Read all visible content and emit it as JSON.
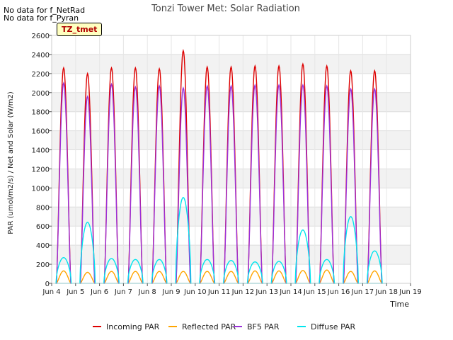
{
  "notes": [
    "No data for f_NetRad",
    "No data for f_Pyran"
  ],
  "badge": "TZ_tmet",
  "chart_data": {
    "type": "line",
    "title": "Tonzi Tower Met: Solar Radiation",
    "xlabel": "Time",
    "ylabel": "PAR (umol/m2/s) / Net and Solar (W/m2)",
    "xlim": [
      4,
      19
    ],
    "ylim": [
      0,
      2600
    ],
    "xticks": [
      4,
      5,
      6,
      7,
      8,
      9,
      10,
      11,
      12,
      13,
      14,
      15,
      16,
      17,
      18,
      19
    ],
    "xtick_labels": [
      "Jun 4",
      "Jun 5",
      "Jun 6",
      "Jun 7",
      "Jun 8",
      "Jun 9",
      "Jun 10",
      "Jun 11",
      "Jun 12",
      "Jun 13",
      "Jun 14",
      "Jun 15",
      "Jun 16",
      "Jun 17",
      "Jun 18",
      "Jun 19"
    ],
    "yticks": [
      0,
      200,
      400,
      600,
      800,
      1000,
      1200,
      1400,
      1600,
      1800,
      2000,
      2200,
      2400,
      2600
    ],
    "ytick_labels": [
      "0",
      "200",
      "400",
      "600",
      "800",
      "1000",
      "1200",
      "1400",
      "1600",
      "1800",
      "2000",
      "2200",
      "2400",
      "2600"
    ],
    "grid": true,
    "legend_position": "bottom",
    "day_centers": [
      4.5,
      5.5,
      6.5,
      7.5,
      8.5,
      9.5,
      10.5,
      11.5,
      12.5,
      13.5,
      14.5,
      15.5,
      16.5,
      17.5
    ],
    "series": [
      {
        "name": "Incoming PAR",
        "color": "#dd0000",
        "daily_peaks": [
          2260,
          2200,
          2260,
          2260,
          2250,
          2440,
          2270,
          2270,
          2280,
          2280,
          2300,
          2280,
          2230,
          2230
        ]
      },
      {
        "name": "Reflected PAR",
        "color": "#ffa500",
        "daily_peaks": [
          130,
          115,
          125,
          125,
          125,
          125,
          125,
          125,
          130,
          130,
          135,
          140,
          125,
          130
        ]
      },
      {
        "name": "BF5 PAR",
        "color": "#9b30d9",
        "daily_peaks": [
          2100,
          1960,
          2090,
          2060,
          2070,
          2050,
          2070,
          2070,
          2080,
          2080,
          2080,
          2070,
          2040,
          2040
        ]
      },
      {
        "name": "Diffuse PAR",
        "color": "#00e5ee",
        "daily_peaks": [
          270,
          640,
          260,
          250,
          250,
          900,
          250,
          240,
          225,
          230,
          560,
          250,
          700,
          340
        ]
      }
    ]
  }
}
